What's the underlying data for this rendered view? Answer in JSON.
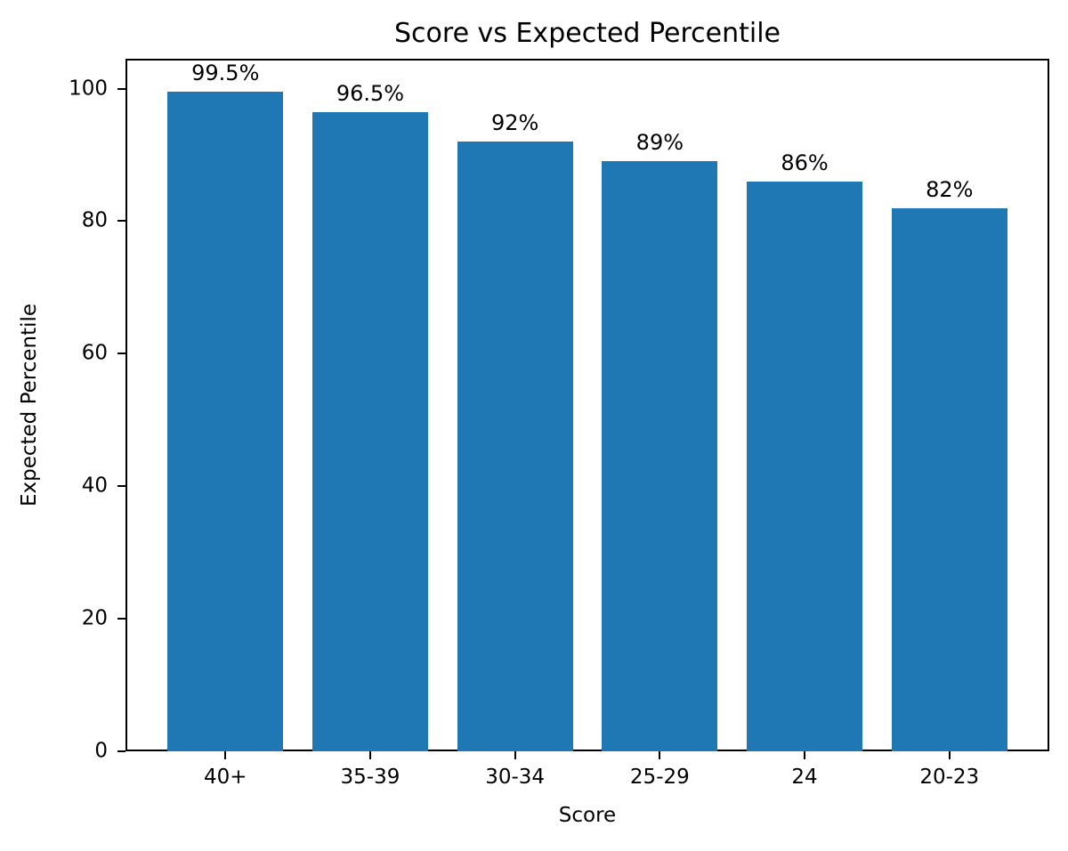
{
  "chart_data": {
    "type": "bar",
    "title": "Score vs Expected Percentile",
    "xlabel": "Score",
    "ylabel": "Expected Percentile",
    "categories": [
      "40+",
      "35-39",
      "30-34",
      "25-29",
      "24",
      "20-23"
    ],
    "values": [
      99.5,
      96.5,
      92,
      89,
      86,
      82
    ],
    "bar_labels": [
      "99.5%",
      "96.5%",
      "92%",
      "89%",
      "86%",
      "82%"
    ],
    "yticks": [
      0,
      20,
      40,
      60,
      80,
      100
    ],
    "ylim": [
      0,
      104.5
    ],
    "bar_color": "#1f77b4",
    "axis_color": "#000000",
    "background_color": "#ffffff",
    "grid": false,
    "legend": null
  }
}
